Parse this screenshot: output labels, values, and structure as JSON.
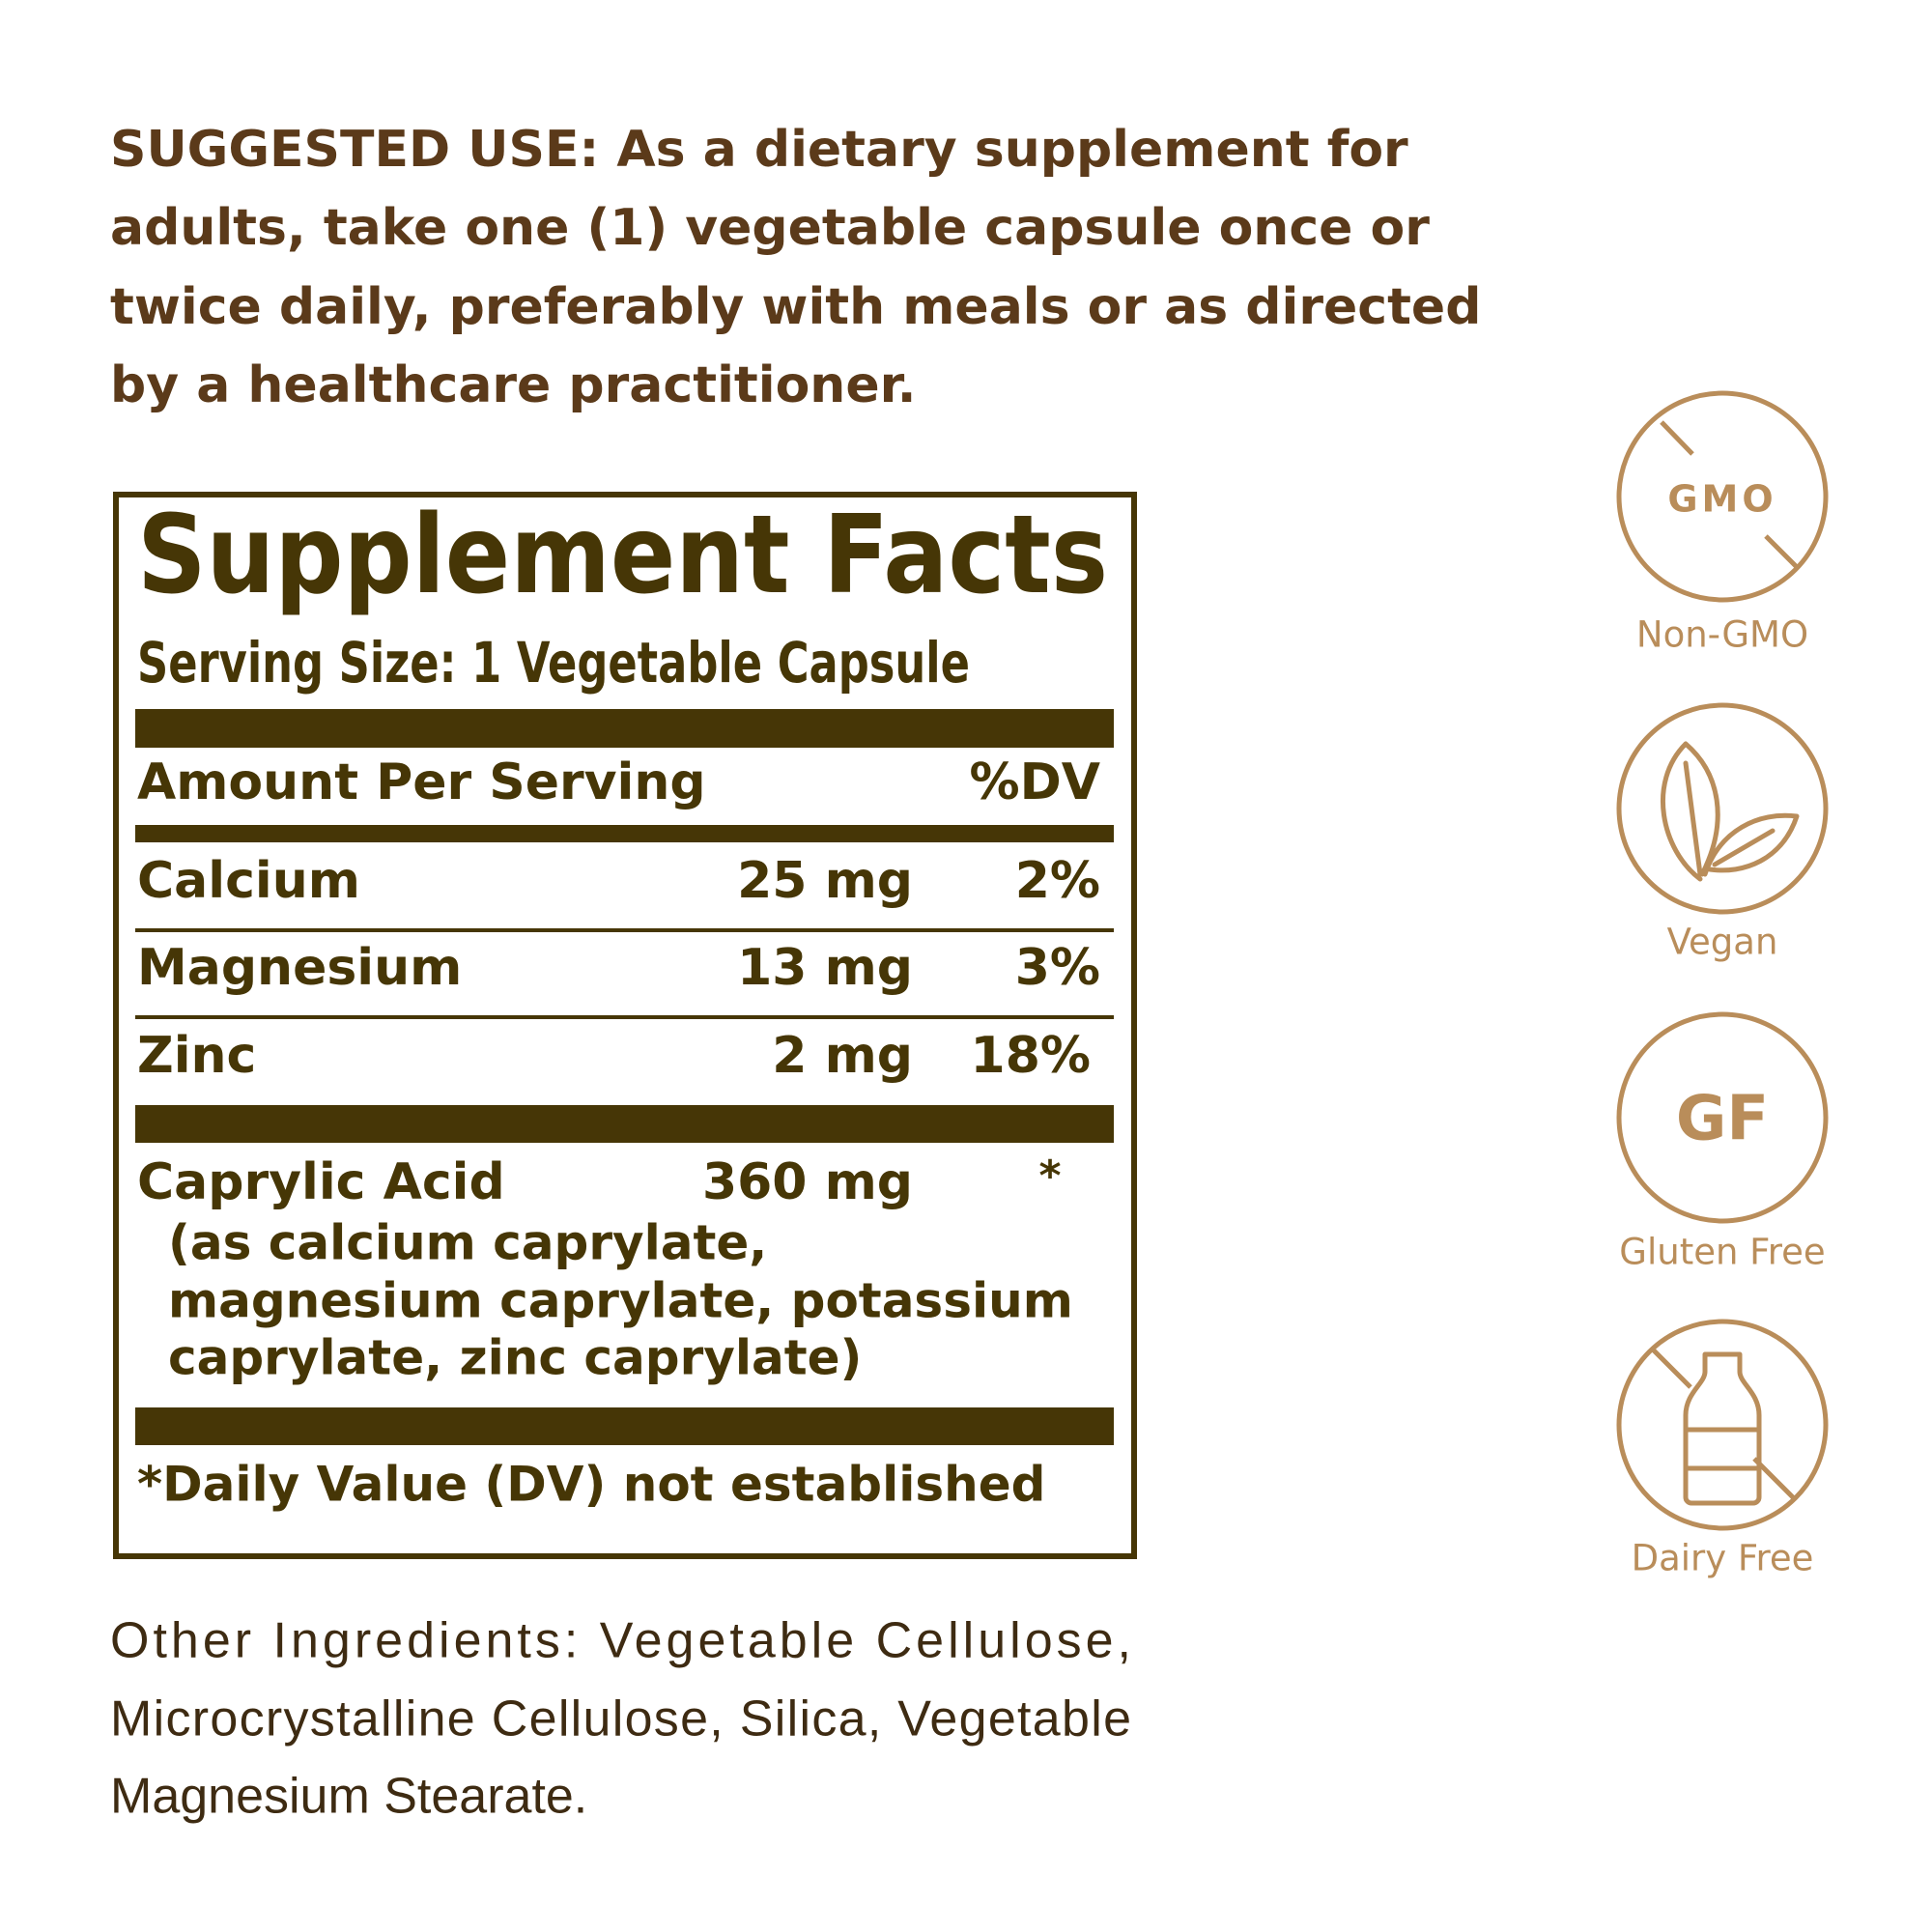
{
  "suggested_use": {
    "lines": [
      "SUGGESTED USE: As a dietary supplement for",
      "adults, take one (1) vegetable capsule once or",
      "twice daily, preferably with meals or as directed",
      "by a healthcare practitioner."
    ]
  },
  "supplement_facts": {
    "title": "Supplement Facts",
    "serving_size": "Serving Size: 1 Vegetable Capsule",
    "header": {
      "amount": "Amount Per Serving",
      "dv": "%DV"
    },
    "rows": [
      [
        "Calcium",
        "25 mg",
        "2%"
      ],
      [
        "Magnesium",
        "13 mg",
        "3%"
      ],
      [
        "Zinc",
        "2 mg",
        "18%"
      ]
    ],
    "caprylic": {
      "name": "Caprylic Acid",
      "amount": "360 mg",
      "dv": "*",
      "detail": [
        "(as calcium caprylate,",
        "magnesium  caprylate, potassium",
        "caprylate, zinc caprylate)"
      ]
    },
    "footnote": "*Daily Value (DV) not established"
  },
  "other_ingredients": {
    "lines": [
      "Other Ingredients: Vegetable Cellulose,",
      "Microcrystalline Cellulose, Silica, Vegetable",
      "Magnesium Stearate."
    ]
  },
  "badges": [
    {
      "icon": "GMO",
      "label": "Non-GMO"
    },
    {
      "label": "Vegan"
    },
    {
      "icon": "GF",
      "label": "Gluten Free"
    },
    {
      "label": "Dairy Free"
    }
  ]
}
